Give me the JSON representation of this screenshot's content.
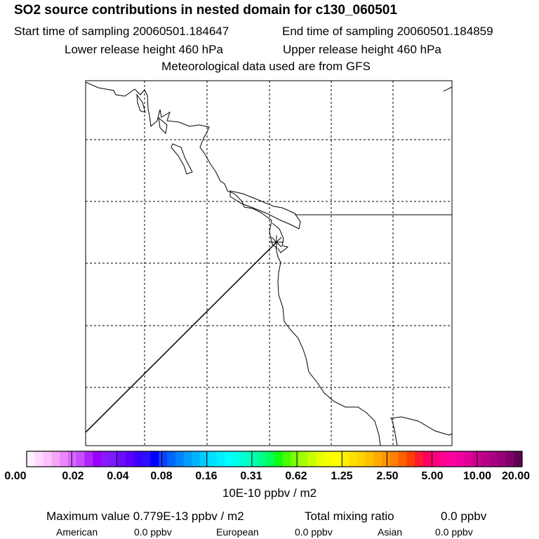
{
  "header": {
    "title": "SO2 source contributions in nested domain for c130_060501",
    "start": "Start time of sampling 20060501.184647",
    "end": "End time of sampling 20060501.184859",
    "lower": "Lower release height  460 hPa",
    "upper": "Upper release height  460 hPa",
    "met": "Meteorological data used are from GFS"
  },
  "colorbar": {
    "ticks": [
      "0.00",
      "0.02",
      "0.04",
      "0.08",
      "0.16",
      "0.31",
      "0.62",
      "1.25",
      "2.50",
      "5.00",
      "10.00",
      "20.00"
    ],
    "units": "10E-10 ppbv / m2",
    "colors": [
      "#fff0ff",
      "#ffd9ff",
      "#ffc2ff",
      "#f7a6f7",
      "#ec86ff",
      "#d966ff",
      "#c64dff",
      "#b026ff",
      "#9900ff",
      "#8a19ff",
      "#7a1cff",
      "#6a0dff",
      "#5a00ff",
      "#3c00ff",
      "#2a10ff",
      "#0000ff",
      "#1040ff",
      "#0064ff",
      "#0082ff",
      "#009cff",
      "#00b4ff",
      "#00ccff",
      "#00e0ff",
      "#00f0ff",
      "#00ffff",
      "#00ffe6",
      "#00ffcc",
      "#00ffb0",
      "#00ff8a",
      "#00ff5a",
      "#10ff10",
      "#48ff00",
      "#80ff00",
      "#a6ff00",
      "#c8ff00",
      "#e6ff00",
      "#f6ff00",
      "#ffff00",
      "#fff000",
      "#ffe000",
      "#ffd400",
      "#ffc000",
      "#ffaa00",
      "#ff9600",
      "#ff7f00",
      "#ff6000",
      "#ff4000",
      "#ff1a30",
      "#ff0060",
      "#ff0080",
      "#ff0090",
      "#ff00a0",
      "#f000a0",
      "#e00098",
      "#cc0090",
      "#b80088",
      "#a80080",
      "#980078",
      "#800068",
      "#600050"
    ]
  },
  "summary": {
    "max_label": "Maximum value  0.779E-13 ppbv / m2",
    "total_label": "Total mixing ratio",
    "total_value": "0.0 ppbv",
    "american_label": "American",
    "american_value": "0.0 ppbv",
    "european_label": "European",
    "european_value": "0.0 ppbv",
    "asian_label": "Asian",
    "asian_value": "0.0 ppbv"
  }
}
